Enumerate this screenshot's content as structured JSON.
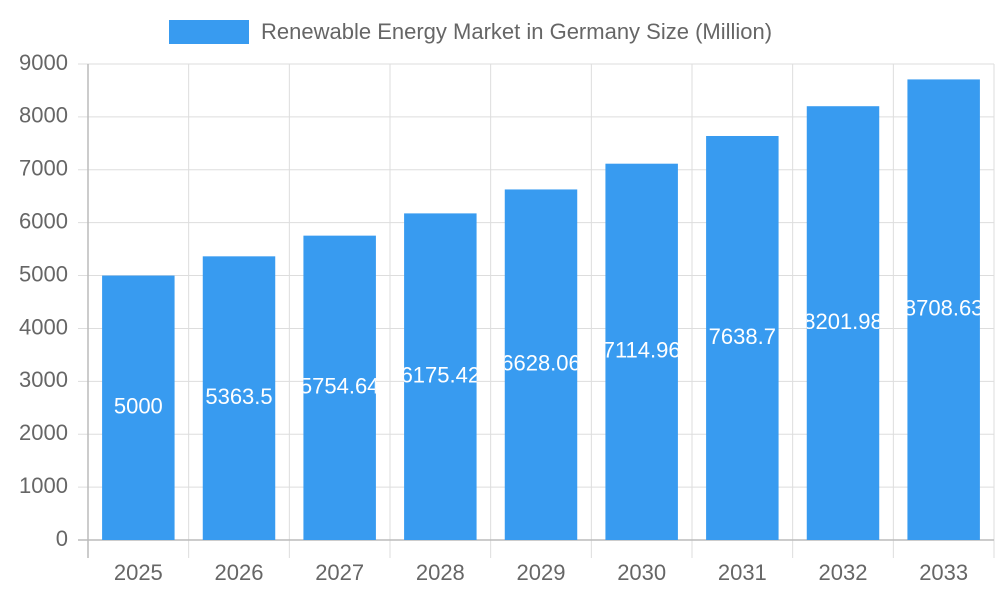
{
  "chart_data": {
    "type": "bar",
    "categories": [
      "2025",
      "2026",
      "2027",
      "2028",
      "2029",
      "2030",
      "2031",
      "2032",
      "2033"
    ],
    "series": [
      {
        "name": "Renewable Energy Market in Germany Size (Million)",
        "color": "#389bf0",
        "values": [
          5000,
          5363.5,
          5754.64,
          6175.42,
          6628.06,
          7114.96,
          7638.7,
          8201.98,
          8708.63
        ]
      }
    ],
    "ylim": [
      0,
      9000
    ],
    "yticks": [
      0,
      1000,
      2000,
      3000,
      4000,
      5000,
      6000,
      7000,
      8000,
      9000
    ],
    "grid": true,
    "legend": "top"
  }
}
